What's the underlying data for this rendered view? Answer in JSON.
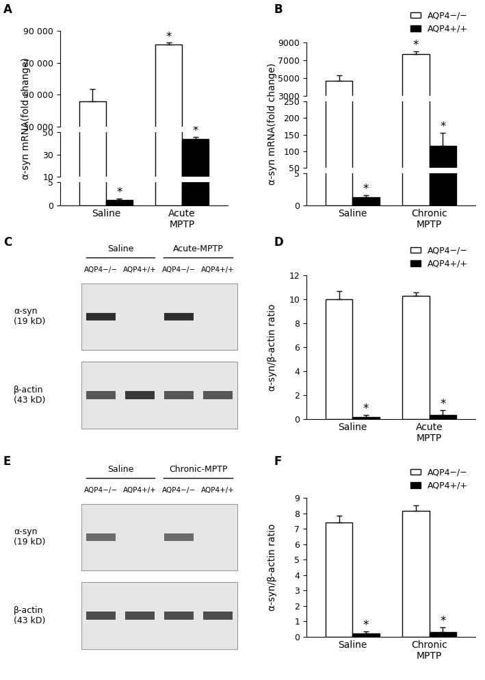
{
  "chart_data": [
    {
      "panel": "A",
      "type": "bar",
      "ylabel": "α-syn mRNA(fold change)",
      "categories": [
        "Saline",
        "Acute\nMPTP"
      ],
      "series": [
        {
          "color": "#ffffff",
          "values": [
            46000,
            81500
          ],
          "errors": [
            7500,
            1000
          ],
          "annotated": [
            false,
            true
          ]
        },
        {
          "color": "#000000",
          "values": [
            1.2,
            44
          ],
          "errors": [
            0.2,
            2
          ],
          "annotated": [
            true,
            true
          ]
        }
      ],
      "annotation": "*",
      "y_segments": [
        {
          "ylim": [
            0,
            5
          ],
          "yticks": [
            0,
            5
          ]
        },
        {
          "ylim": [
            10,
            50
          ],
          "yticks": [
            10,
            30,
            50
          ]
        },
        {
          "ylim": [
            30000,
            90000
          ],
          "yticks": [
            {
              "value": 30000,
              "label": "30 000"
            },
            {
              "value": 50000,
              "label": "50 000"
            },
            {
              "value": 70000,
              "label": "70 000"
            },
            {
              "value": 90000,
              "label": "90 000"
            }
          ]
        }
      ]
    },
    {
      "panel": "B",
      "type": "bar",
      "ylabel": "α-syn mRNA(fold change)",
      "categories": [
        "Saline",
        "Chronic\nMPTP"
      ],
      "series": [
        {
          "name": "AQP4−/−",
          "color": "#ffffff",
          "values": [
            4700,
            7700
          ],
          "errors": [
            600,
            300
          ],
          "annotated": [
            false,
            true
          ]
        },
        {
          "name": "AQP4+/+",
          "color": "#000000",
          "values": [
            1.3,
            115
          ],
          "errors": [
            0.25,
            40
          ],
          "annotated": [
            true,
            true
          ]
        }
      ],
      "annotation": "*",
      "legend": "upper right",
      "y_segments": [
        {
          "ylim": [
            0,
            5
          ],
          "yticks": [
            0,
            5
          ]
        },
        {
          "ylim": [
            50,
            250
          ],
          "yticks": [
            50,
            100,
            150,
            200,
            250
          ]
        },
        {
          "ylim": [
            3000,
            9000
          ],
          "yticks": [
            3000,
            5000,
            7000,
            9000
          ]
        }
      ]
    },
    {
      "panel": "D",
      "type": "bar",
      "ylabel": "α-syn/β-actin ratio",
      "categories": [
        "Saline",
        "Acute\nMPTP"
      ],
      "series": [
        {
          "name": "AQP4−/−",
          "color": "#ffffff",
          "values": [
            10.0,
            10.3
          ],
          "errors": [
            0.7,
            0.3
          ],
          "annotated": [
            false,
            false
          ]
        },
        {
          "name": "AQP4+/+",
          "color": "#000000",
          "values": [
            0.2,
            0.35
          ],
          "errors": [
            0.15,
            0.4
          ],
          "annotated": [
            true,
            true
          ]
        }
      ],
      "annotation": "*",
      "legend": "upper right",
      "ylim": [
        0,
        12
      ],
      "yticks": [
        0,
        2,
        4,
        6,
        8,
        10,
        12
      ]
    },
    {
      "panel": "F",
      "type": "bar",
      "ylabel": "α-syn/β-actin ratio",
      "categories": [
        "Saline",
        "Chronic\nMPTP"
      ],
      "series": [
        {
          "name": "AQP4−/−",
          "color": "#ffffff",
          "values": [
            7.4,
            8.15
          ],
          "errors": [
            0.45,
            0.35
          ],
          "annotated": [
            false,
            false
          ]
        },
        {
          "name": "AQP4+/+",
          "color": "#000000",
          "values": [
            0.2,
            0.3
          ],
          "errors": [
            0.15,
            0.3
          ],
          "annotated": [
            true,
            true
          ]
        }
      ],
      "annotation": "*",
      "legend": "upper right",
      "ylim": [
        0,
        9
      ],
      "yticks": [
        0,
        1,
        2,
        3,
        4,
        5,
        6,
        7,
        8,
        9
      ]
    }
  ],
  "blots": [
    {
      "panel": "C",
      "groups": [
        "Saline",
        "Acute-MPTP"
      ],
      "lanes": [
        "AQP4−/−",
        "AQP4+/+",
        "AQP4−/−",
        "AQP4+/+"
      ],
      "rows": [
        {
          "label": "α-syn\n(19 kD)",
          "bands": [
            0.9,
            0,
            0.9,
            0
          ]
        },
        {
          "label": "β-actin\n(43 kD)",
          "bands": [
            0.7,
            0.85,
            0.7,
            0.7
          ]
        }
      ]
    },
    {
      "panel": "E",
      "groups": [
        "Saline",
        "Chronic-MPTP"
      ],
      "lanes": [
        "AQP4−/−",
        "AQP4+/+",
        "AQP4−/−",
        "AQP4+/+"
      ],
      "rows": [
        {
          "label": "α-syn\n(19 kD)",
          "bands": [
            0.6,
            0,
            0.6,
            0
          ]
        },
        {
          "label": "β-actin\n(43 kD)",
          "bands": [
            0.75,
            0.75,
            0.75,
            0.75
          ]
        }
      ]
    }
  ]
}
